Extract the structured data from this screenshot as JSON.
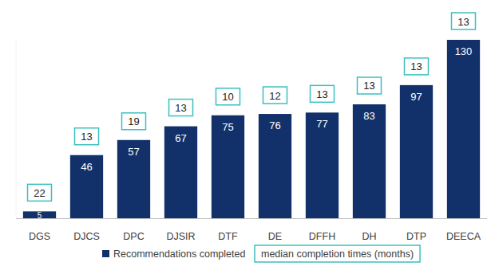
{
  "chart_data": {
    "type": "bar",
    "categories": [
      "DGS",
      "DJCS",
      "DPC",
      "DJSIR",
      "DTF",
      "DE",
      "DFFH",
      "DH",
      "DTP",
      "DEECA"
    ],
    "series": [
      {
        "name": "Recommendations completed",
        "type": "bar",
        "color": "#12316b",
        "values": [
          5,
          46,
          57,
          67,
          75,
          76,
          77,
          83,
          97,
          130
        ]
      },
      {
        "name": "median completion times (months)",
        "type": "text",
        "color": "#3dbfbf",
        "values": [
          22,
          13,
          19,
          13,
          10,
          12,
          13,
          13,
          13,
          13
        ]
      }
    ],
    "ylim": [
      0,
      130
    ],
    "data_labels": true,
    "tick_labels": "x",
    "legend": "bottom"
  }
}
